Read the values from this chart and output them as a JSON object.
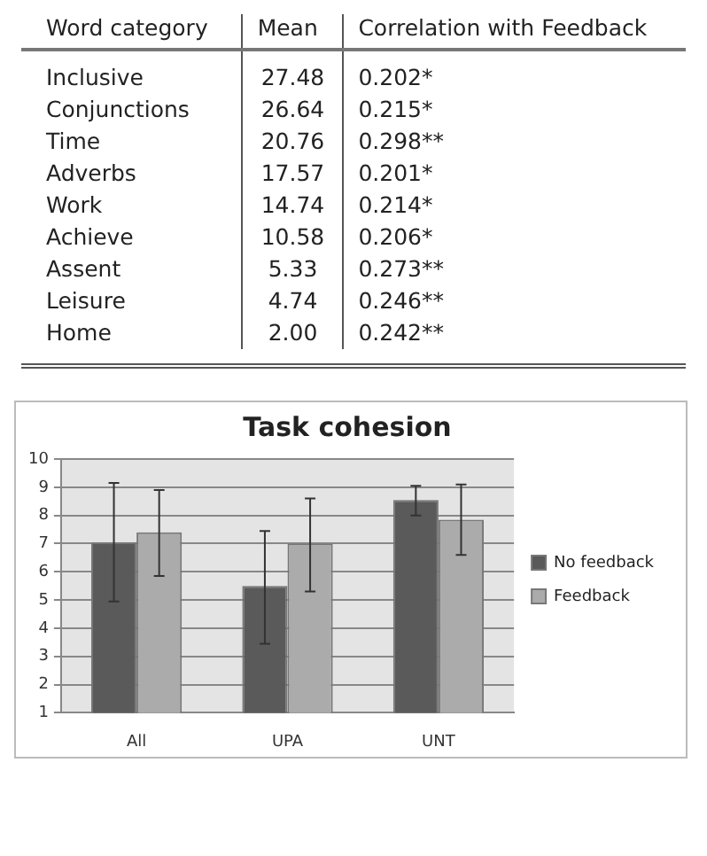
{
  "chart_data": [
    {
      "type": "other",
      "xlabel": "Word category",
      "categories": [
        "Inclusive",
        "Conjunctions",
        "Time",
        "Adverbs",
        "Work",
        "Achieve",
        "Assent",
        "Leisure",
        "Home"
      ],
      "series": [
        {
          "name": "Mean",
          "values": [
            27.48,
            26.64,
            20.76,
            17.57,
            14.74,
            10.58,
            5.33,
            4.74,
            2.0
          ],
          "value_labels": [
            "27.48",
            "26.64",
            "20.76",
            "17.57",
            "14.74",
            "10.58",
            "5.33",
            "4.74",
            "2.00"
          ]
        },
        {
          "name": "Correlation with Feedback",
          "values": [
            0.202,
            0.215,
            0.298,
            0.201,
            0.214,
            0.206,
            0.273,
            0.246,
            0.242
          ],
          "value_labels": [
            "0.202*",
            "0.215*",
            "0.298**",
            "0.201*",
            "0.214*",
            "0.206*",
            "0.273**",
            "0.246**",
            "0.242**"
          ]
        }
      ]
    },
    {
      "type": "bar",
      "title": "Task cohesion",
      "categories": [
        "All",
        "UPA",
        "UNT"
      ],
      "series": [
        {
          "name": "No feedback",
          "color": "#5a5a5a",
          "values": [
            7.05,
            5.5,
            8.55
          ],
          "errors": [
            [
              4.95,
              9.15
            ],
            [
              3.45,
              7.45
            ],
            [
              8.0,
              9.05
            ]
          ]
        },
        {
          "name": "Feedback",
          "color": "#ababab",
          "values": [
            7.4,
            7.0,
            7.85
          ],
          "errors": [
            [
              5.85,
              8.9
            ],
            [
              5.3,
              8.6
            ],
            [
              6.6,
              9.1
            ]
          ]
        }
      ],
      "ylim": [
        1,
        10
      ],
      "yticks": [
        1,
        2,
        3,
        4,
        5,
        6,
        7,
        8,
        9,
        10
      ],
      "grid": "y",
      "legend": "right"
    }
  ]
}
